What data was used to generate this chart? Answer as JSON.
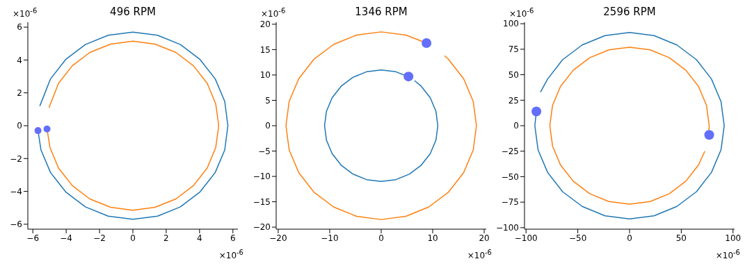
{
  "chart_data": [
    {
      "type": "line",
      "title": "496 RPM",
      "xlim": [
        -6.3,
        6.3
      ],
      "ylim": [
        -6.3,
        6.3
      ],
      "xticks": [
        -6,
        -4,
        -2,
        0,
        2,
        4,
        6
      ],
      "yticks": [
        -6,
        -4,
        -2,
        0,
        2,
        4,
        6
      ],
      "annotations": [
        "×10$^{-6}$",
        "×10$^{-6}$"
      ],
      "series": [
        {
          "color": "#1f77b4",
          "x": [
            -5.58,
            -4.94,
            -4.03,
            -2.85,
            -1.48,
            0,
            1.48,
            2.85,
            4.03,
            4.94,
            5.51,
            5.7,
            5.51,
            4.94,
            4.03,
            2.85,
            1.48,
            0,
            -1.48,
            -2.85,
            -4.03,
            -4.94,
            -5.51,
            -5.69
          ],
          "values": [
            1.2,
            2.85,
            4.03,
            4.94,
            5.51,
            5.7,
            5.51,
            4.94,
            4.03,
            2.85,
            1.48,
            0,
            -1.48,
            -2.85,
            -4.03,
            -4.94,
            -5.51,
            -5.7,
            -5.51,
            -4.94,
            -4.03,
            -2.85,
            -1.48,
            -0.3
          ]
        },
        {
          "color": "#ff7f0e",
          "x": [
            -5.03,
            -4.46,
            -3.64,
            -2.58,
            -1.33,
            0,
            1.33,
            2.58,
            3.64,
            4.46,
            4.97,
            5.15,
            4.97,
            4.46,
            3.64,
            2.58,
            1.33,
            0,
            -1.33,
            -2.58,
            -3.64,
            -4.46,
            -4.97,
            -5.15
          ],
          "values": [
            1.1,
            2.58,
            3.64,
            4.46,
            4.97,
            5.15,
            4.97,
            4.46,
            3.64,
            2.58,
            1.33,
            0,
            -1.33,
            -2.58,
            -3.64,
            -4.46,
            -4.97,
            -5.15,
            -4.97,
            -4.46,
            -3.64,
            -2.58,
            -1.33,
            -0.2
          ]
        },
        {
          "type": "scatter",
          "color": "#636efa",
          "x": [
            -5.69,
            -5.15
          ],
          "values": [
            -0.3,
            -0.2
          ]
        }
      ]
    },
    {
      "type": "line",
      "title": "1346 RPM",
      "xlim": [
        -20.4,
        20.4
      ],
      "ylim": [
        -20.4,
        20.4
      ],
      "xticks": [
        -20,
        -10,
        0,
        10,
        20
      ],
      "yticks": [
        -20,
        -15,
        -10,
        -5,
        0,
        5,
        10,
        15,
        20
      ],
      "annotations": [
        "×10$^{-6}$",
        "×10$^{-6}$"
      ],
      "series": [
        {
          "color": "#1f77b4",
          "x": [
            6.47,
            7.78,
            9.53,
            10.63,
            11,
            10.63,
            9.53,
            7.78,
            5.5,
            2.85,
            0,
            -2.85,
            -5.5,
            -7.78,
            -9.53,
            -10.63,
            -11,
            -10.63,
            -9.53,
            -7.78,
            -5.5,
            -2.85,
            0,
            2.85,
            5.3
          ],
          "values": [
            8.9,
            7.78,
            5.5,
            2.85,
            0,
            -2.85,
            -5.5,
            -7.78,
            -9.53,
            -10.63,
            -11,
            -10.63,
            -9.53,
            -7.78,
            -5.5,
            -2.85,
            0,
            2.85,
            5.5,
            7.78,
            9.53,
            10.63,
            11,
            10.63,
            9.65
          ]
        },
        {
          "color": "#ff7f0e",
          "x": [
            12.3,
            13.08,
            16.02,
            17.87,
            18.5,
            17.87,
            16.02,
            13.08,
            9.25,
            4.79,
            0,
            -4.79,
            -9.25,
            -13.08,
            -16.02,
            -17.87,
            -18.5,
            -17.87,
            -16.02,
            -13.08,
            -9.25,
            -4.79,
            0,
            4.79,
            8.8
          ],
          "values": [
            13.8,
            13.08,
            9.25,
            4.79,
            0,
            -4.79,
            -9.25,
            -13.08,
            -16.02,
            -17.87,
            -18.5,
            -17.87,
            -16.02,
            -13.08,
            -9.25,
            -4.79,
            0,
            4.79,
            9.25,
            13.08,
            16.02,
            17.87,
            18.5,
            17.87,
            16.3
          ]
        },
        {
          "type": "scatter",
          "color": "#636efa",
          "x": [
            5.3,
            8.8
          ],
          "values": [
            9.7,
            16.3
          ]
        }
      ]
    },
    {
      "type": "line",
      "title": "2596 RPM",
      "xlim": [
        -101.5,
        101.5
      ],
      "ylim": [
        -101.5,
        101.5
      ],
      "xticks": [
        -100,
        -50,
        0,
        50,
        100
      ],
      "yticks": [
        -100,
        -75,
        -50,
        -25,
        0,
        25,
        50,
        75,
        100
      ],
      "annotations": [
        "×10$^{-6}$",
        "×10$^{-6}$"
      ],
      "series": [
        {
          "color": "#1f77b4",
          "x": [
            -86,
            -79.2,
            -64.7,
            -45.75,
            -23.7,
            0,
            23.7,
            45.75,
            64.7,
            79.2,
            88.4,
            91.5,
            88.4,
            79.2,
            64.7,
            45.75,
            23.7,
            0,
            -23.7,
            -45.75,
            -64.7,
            -79.2,
            -88.4,
            -91.5,
            -90
          ],
          "values": [
            33,
            45.75,
            64.7,
            79.2,
            88.4,
            91.5,
            88.4,
            79.2,
            64.7,
            45.75,
            23.7,
            0,
            -23.7,
            -45.75,
            -64.7,
            -79.2,
            -88.4,
            -91.5,
            -88.4,
            -79.2,
            -64.7,
            -45.75,
            -23.7,
            0,
            14
          ]
        },
        {
          "color": "#ff7f0e",
          "x": [
            76.5,
            77,
            74.4,
            66.7,
            54.4,
            38.5,
            19.9,
            0,
            -19.9,
            -38.5,
            -54.4,
            -66.7,
            -74.4,
            -77,
            -74.4,
            -66.7,
            -54.4,
            -38.5,
            -19.9,
            0,
            19.9,
            38.5,
            54.4,
            66.7,
            72.7
          ],
          "values": [
            -9,
            0,
            19.9,
            38.5,
            54.4,
            66.7,
            74.4,
            77,
            74.4,
            66.7,
            54.4,
            38.5,
            19.9,
            0,
            -19.9,
            -38.5,
            -54.4,
            -66.7,
            -74.4,
            -77,
            -74.4,
            -66.7,
            -54.4,
            -38.5,
            -25
          ]
        },
        {
          "type": "scatter",
          "color": "#636efa",
          "x": [
            -90,
            77
          ],
          "values": [
            14,
            -9
          ]
        }
      ]
    }
  ]
}
